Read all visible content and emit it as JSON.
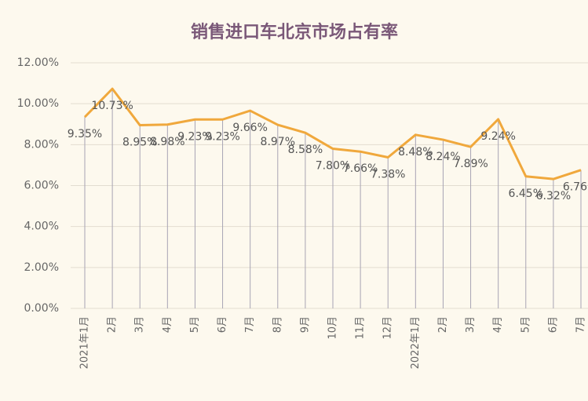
{
  "chart_data": {
    "type": "line",
    "title": "销售进口车北京市场占有率",
    "categories": [
      "2021年1月",
      "2月",
      "3月",
      "4月",
      "5月",
      "6月",
      "7月",
      "8月",
      "9月",
      "10月",
      "11月",
      "12月",
      "2022年1月",
      "2月",
      "3月",
      "4月",
      "5月",
      "6月",
      "7月"
    ],
    "values": [
      9.35,
      10.73,
      8.95,
      8.98,
      9.23,
      9.23,
      9.66,
      8.97,
      8.58,
      7.8,
      7.66,
      7.38,
      8.48,
      8.24,
      7.89,
      9.24,
      6.45,
      6.32,
      6.76
    ],
    "value_labels": [
      "9.35%",
      "10.73%",
      "8.95%",
      "8.98%",
      "9.23%",
      "9.23%",
      "9.66%",
      "8.97%",
      "8.58%",
      "7.80%",
      "7.66%",
      "7.38%",
      "8.48%",
      "8.24%",
      "7.89%",
      "9.24%",
      "6.45%",
      "6.32%",
      "6.76"
    ],
    "color": "#f0a83c",
    "ylim": [
      0,
      12
    ],
    "yticks": [
      {
        "value": 0,
        "label": "0.00%"
      },
      {
        "value": 2,
        "label": "2.00%"
      },
      {
        "value": 4,
        "label": "4.00%"
      },
      {
        "value": 6,
        "label": "6.00%"
      },
      {
        "value": 8,
        "label": "8.00%"
      },
      {
        "value": 10,
        "label": "10.00%"
      },
      {
        "value": 12,
        "label": "12.00%"
      }
    ],
    "grid": true,
    "drop_lines": true
  }
}
